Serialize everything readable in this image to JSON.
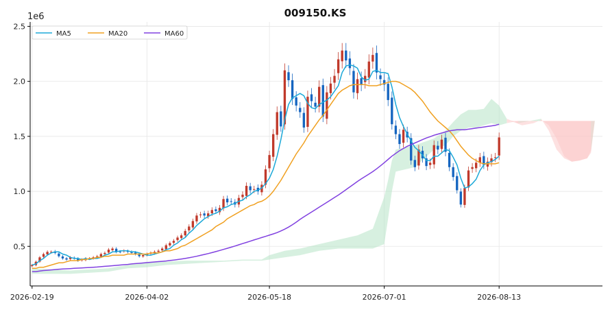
{
  "chart_data": {
    "type": "candlestick",
    "title": "009150.KS",
    "y_scale_label": "1e6",
    "y_ticks": [
      0.5,
      1.0,
      1.5,
      2.0,
      2.5
    ],
    "y_tick_labels": [
      "0.5",
      "1.0",
      "1.5",
      "2.0",
      "2.5"
    ],
    "ylim": [
      0.14,
      2.54
    ],
    "x_tick_labels": [
      "2026-02-19",
      "2026-04-02",
      "2026-05-18",
      "2026-07-01",
      "2026-08-13"
    ],
    "x_tick_index": [
      0,
      30,
      62,
      92,
      122
    ],
    "xlim": [
      -0.5,
      149
    ],
    "grid": true,
    "legend_position": "top-left",
    "colors": {
      "up": "#c0392b",
      "down": "#1565c0",
      "ma5": "#1ba8d8",
      "ma20": "#f0a020",
      "ma60": "#8040e0",
      "cloud_bull": "#b7e4c7",
      "cloud_bear": "#fbc8c8"
    },
    "series": [
      {
        "name": "MA5",
        "key": "ma5"
      },
      {
        "name": "MA20",
        "key": "ma20"
      },
      {
        "name": "MA60",
        "key": "ma60"
      }
    ],
    "close": [
      0.33,
      0.36,
      0.4,
      0.43,
      0.45,
      0.45,
      0.44,
      0.41,
      0.39,
      0.38,
      0.4,
      0.39,
      0.37,
      0.38,
      0.39,
      0.39,
      0.4,
      0.41,
      0.43,
      0.44,
      0.47,
      0.48,
      0.45,
      0.45,
      0.46,
      0.45,
      0.44,
      0.43,
      0.41,
      0.42,
      0.43,
      0.44,
      0.45,
      0.46,
      0.48,
      0.51,
      0.53,
      0.55,
      0.58,
      0.6,
      0.64,
      0.68,
      0.73,
      0.78,
      0.79,
      0.78,
      0.8,
      0.83,
      0.82,
      0.85,
      0.93,
      0.9,
      0.91,
      0.88,
      0.94,
      0.97,
      1.05,
      1.01,
      1.02,
      1.0,
      1.06,
      1.2,
      1.33,
      1.52,
      1.72,
      1.59,
      2.1,
      2.01,
      1.84,
      1.78,
      1.72,
      1.58,
      1.86,
      1.82,
      1.77,
      1.95,
      1.68,
      1.9,
      1.98,
      2.05,
      2.2,
      2.28,
      2.19,
      2.12,
      1.9,
      2.02,
      1.97,
      2.05,
      2.18,
      2.24,
      2.08,
      2.02,
      1.97,
      1.83,
      1.61,
      1.52,
      1.43,
      1.56,
      1.49,
      1.28,
      1.22,
      1.38,
      1.3,
      1.23,
      1.26,
      1.42,
      1.38,
      1.47,
      1.36,
      1.22,
      1.13,
      1.01,
      0.88,
      1.03,
      1.19,
      1.22,
      1.26,
      1.31,
      1.24,
      1.27,
      1.3,
      1.31,
      1.49
    ],
    "ma5": [
      0.33,
      0.34,
      0.37,
      0.39,
      0.42,
      0.44,
      0.45,
      0.45,
      0.43,
      0.42,
      0.4,
      0.39,
      0.39,
      0.38,
      0.39,
      0.38,
      0.39,
      0.39,
      0.4,
      0.42,
      0.43,
      0.45,
      0.45,
      0.46,
      0.46,
      0.46,
      0.45,
      0.45,
      0.44,
      0.43,
      0.42,
      0.42,
      0.43,
      0.44,
      0.45,
      0.47,
      0.48,
      0.51,
      0.53,
      0.56,
      0.58,
      0.62,
      0.65,
      0.69,
      0.72,
      0.75,
      0.77,
      0.79,
      0.8,
      0.82,
      0.85,
      0.86,
      0.88,
      0.89,
      0.91,
      0.92,
      0.95,
      0.97,
      1.0,
      1.01,
      1.03,
      1.07,
      1.12,
      1.2,
      1.32,
      1.47,
      1.65,
      1.79,
      1.85,
      1.87,
      1.89,
      1.87,
      1.8,
      1.76,
      1.75,
      1.79,
      1.81,
      1.83,
      1.86,
      1.91,
      1.96,
      2.08,
      2.14,
      2.15,
      2.14,
      2.12,
      2.04,
      2.01,
      2.02,
      2.09,
      2.1,
      2.08,
      2.08,
      2.07,
      1.95,
      1.79,
      1.67,
      1.59,
      1.52,
      1.46,
      1.4,
      1.37,
      1.33,
      1.28,
      1.28,
      1.32,
      1.32,
      1.35,
      1.38,
      1.37,
      1.31,
      1.24,
      1.12,
      1.03,
      1.04,
      1.07,
      1.11,
      1.19,
      1.24,
      1.26,
      1.27,
      1.29,
      1.32
    ],
    "ma20": [
      0.3,
      0.3,
      0.31,
      0.31,
      0.32,
      0.33,
      0.34,
      0.35,
      0.35,
      0.36,
      0.37,
      0.37,
      0.37,
      0.38,
      0.38,
      0.39,
      0.39,
      0.4,
      0.4,
      0.41,
      0.41,
      0.42,
      0.42,
      0.42,
      0.42,
      0.43,
      0.43,
      0.43,
      0.43,
      0.43,
      0.43,
      0.44,
      0.44,
      0.44,
      0.45,
      0.46,
      0.46,
      0.47,
      0.48,
      0.5,
      0.51,
      0.53,
      0.55,
      0.57,
      0.59,
      0.61,
      0.63,
      0.65,
      0.68,
      0.7,
      0.72,
      0.75,
      0.77,
      0.79,
      0.81,
      0.83,
      0.85,
      0.87,
      0.88,
      0.9,
      0.91,
      0.93,
      0.96,
      1.0,
      1.05,
      1.1,
      1.16,
      1.22,
      1.28,
      1.34,
      1.39,
      1.44,
      1.5,
      1.55,
      1.6,
      1.65,
      1.69,
      1.74,
      1.79,
      1.84,
      1.89,
      1.92,
      1.94,
      1.96,
      1.97,
      1.97,
      1.97,
      1.97,
      1.96,
      1.96,
      1.96,
      1.97,
      1.98,
      1.99,
      2.0,
      2.0,
      1.99,
      1.97,
      1.95,
      1.93,
      1.9,
      1.86,
      1.82,
      1.77,
      1.72,
      1.68,
      1.64,
      1.61,
      1.58,
      1.55,
      1.51,
      1.46,
      1.41,
      1.37,
      1.33,
      1.3,
      1.28,
      1.26,
      1.25,
      1.25,
      1.25,
      1.25,
      1.26
    ],
    "ma60": [
      0.27,
      0.27,
      0.275,
      0.28,
      0.283,
      0.286,
      0.289,
      0.292,
      0.294,
      0.296,
      0.298,
      0.3,
      0.302,
      0.304,
      0.306,
      0.308,
      0.31,
      0.312,
      0.315,
      0.318,
      0.321,
      0.324,
      0.327,
      0.33,
      0.333,
      0.336,
      0.34,
      0.343,
      0.346,
      0.349,
      0.352,
      0.355,
      0.358,
      0.361,
      0.364,
      0.367,
      0.371,
      0.375,
      0.38,
      0.385,
      0.39,
      0.396,
      0.403,
      0.41,
      0.418,
      0.426,
      0.434,
      0.443,
      0.452,
      0.462,
      0.472,
      0.482,
      0.492,
      0.503,
      0.514,
      0.525,
      0.536,
      0.547,
      0.558,
      0.569,
      0.58,
      0.591,
      0.602,
      0.613,
      0.625,
      0.64,
      0.656,
      0.675,
      0.696,
      0.72,
      0.745,
      0.768,
      0.79,
      0.812,
      0.834,
      0.856,
      0.878,
      0.9,
      0.922,
      0.944,
      0.966,
      0.99,
      1.015,
      1.04,
      1.065,
      1.09,
      1.113,
      1.135,
      1.157,
      1.18,
      1.205,
      1.232,
      1.26,
      1.29,
      1.32,
      1.345,
      1.37,
      1.39,
      1.41,
      1.425,
      1.44,
      1.455,
      1.47,
      1.485,
      1.497,
      1.51,
      1.52,
      1.53,
      1.54,
      1.55,
      1.555,
      1.56,
      1.56,
      1.56,
      1.565,
      1.57,
      1.575,
      1.58,
      1.585,
      1.59,
      1.595,
      1.6,
      1.61
    ],
    "cloud_span_a": [
      [
        0,
        0.3
      ],
      [
        10,
        0.28
      ],
      [
        20,
        0.3
      ],
      [
        25,
        0.33
      ],
      [
        30,
        0.36
      ],
      [
        35,
        0.36
      ],
      [
        40,
        0.37
      ],
      [
        45,
        0.37
      ],
      [
        50,
        0.37
      ],
      [
        55,
        0.38
      ],
      [
        60,
        0.38
      ],
      [
        62,
        0.42
      ],
      [
        66,
        0.46
      ],
      [
        70,
        0.48
      ],
      [
        75,
        0.52
      ],
      [
        80,
        0.56
      ],
      [
        85,
        0.6
      ],
      [
        89,
        0.66
      ],
      [
        92,
        0.95
      ],
      [
        93,
        1.1
      ],
      [
        94,
        1.28
      ],
      [
        95,
        1.38
      ],
      [
        100,
        1.42
      ],
      [
        105,
        1.48
      ],
      [
        108,
        1.55
      ],
      [
        110,
        1.63
      ],
      [
        112,
        1.7
      ],
      [
        114,
        1.74
      ],
      [
        116,
        1.74
      ],
      [
        118,
        1.75
      ],
      [
        120,
        1.84
      ],
      [
        122,
        1.78
      ],
      [
        124,
        1.66
      ],
      [
        127,
        1.62
      ],
      [
        130,
        1.64
      ],
      [
        133,
        1.66
      ],
      [
        135,
        1.55
      ],
      [
        137,
        1.38
      ],
      [
        139,
        1.3
      ],
      [
        141,
        1.27
      ],
      [
        143,
        1.28
      ],
      [
        145,
        1.3
      ],
      [
        146,
        1.37
      ],
      [
        147,
        1.64
      ]
    ],
    "cloud_span_b": [
      [
        0,
        0.25
      ],
      [
        10,
        0.25
      ],
      [
        20,
        0.27
      ],
      [
        25,
        0.3
      ],
      [
        30,
        0.31
      ],
      [
        35,
        0.33
      ],
      [
        40,
        0.34
      ],
      [
        45,
        0.35
      ],
      [
        50,
        0.36
      ],
      [
        55,
        0.37
      ],
      [
        60,
        0.37
      ],
      [
        62,
        0.38
      ],
      [
        66,
        0.4
      ],
      [
        70,
        0.42
      ],
      [
        75,
        0.46
      ],
      [
        80,
        0.48
      ],
      [
        85,
        0.48
      ],
      [
        89,
        0.48
      ],
      [
        92,
        0.52
      ],
      [
        93,
        0.75
      ],
      [
        94,
        1.0
      ],
      [
        95,
        1.18
      ],
      [
        100,
        1.22
      ],
      [
        105,
        1.38
      ],
      [
        108,
        1.42
      ],
      [
        110,
        1.5
      ],
      [
        112,
        1.55
      ],
      [
        114,
        1.58
      ],
      [
        116,
        1.58
      ],
      [
        118,
        1.6
      ],
      [
        120,
        1.62
      ],
      [
        122,
        1.6
      ],
      [
        124,
        1.62
      ],
      [
        127,
        1.64
      ],
      [
        130,
        1.64
      ],
      [
        133,
        1.64
      ],
      [
        135,
        1.64
      ],
      [
        137,
        1.64
      ],
      [
        139,
        1.64
      ],
      [
        141,
        1.64
      ],
      [
        143,
        1.64
      ],
      [
        145,
        1.64
      ],
      [
        146,
        1.64
      ],
      [
        147,
        1.64
      ]
    ]
  }
}
